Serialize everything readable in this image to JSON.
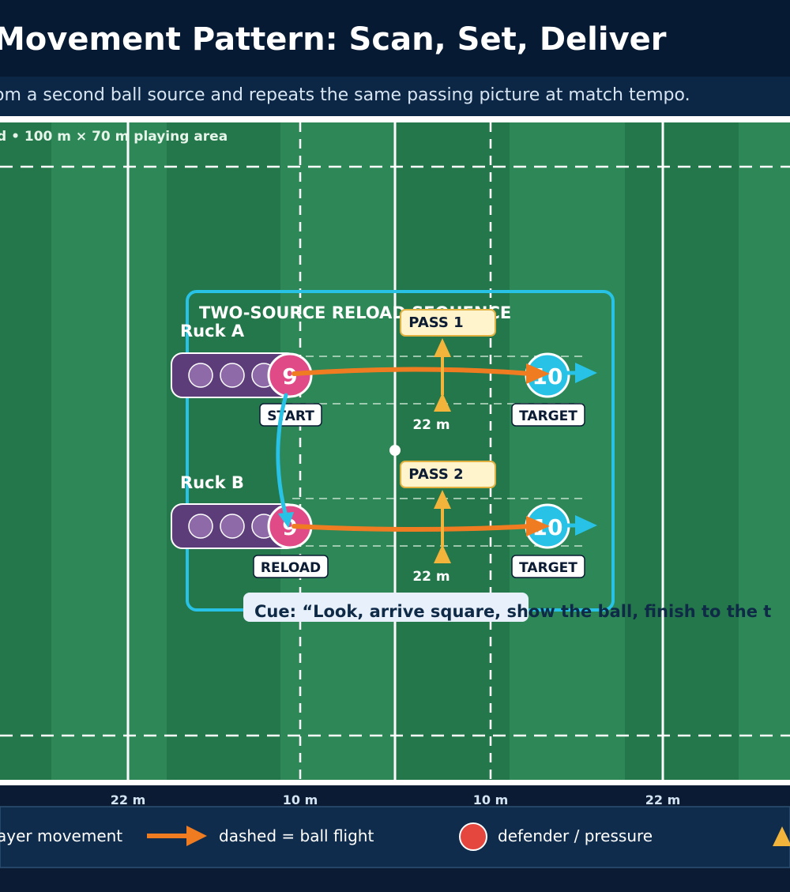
{
  "header": {
    "title": "Movement Pattern: Scan, Set, Deliver",
    "subtitle": "om a second ball source and repeats the same passing picture at match tempo."
  },
  "pitch": {
    "caption": "d • 100 m × 70 m playing area",
    "bottom_labels": [
      "22 m",
      "10 m",
      "10 m",
      "22 m"
    ]
  },
  "drill": {
    "box_title": "TWO-SOURCE RELOAD SEQUENCE",
    "rucks": [
      {
        "name": "Ruck A",
        "player": "9",
        "player_tag": "START",
        "receiver": "10",
        "receiver_tag": "TARGET",
        "pass_label": "PASS 1",
        "distance": "22 m"
      },
      {
        "name": "Ruck B",
        "player": "9",
        "player_tag": "RELOAD",
        "receiver": "10",
        "receiver_tag": "TARGET",
        "pass_label": "PASS 2",
        "distance": "22 m"
      }
    ],
    "cue": "Cue: “Look, arrive square, show the ball, finish to the t"
  },
  "legend": {
    "items": [
      {
        "icon": "player-movement-arrow-icon",
        "label": "ayer movement"
      },
      {
        "icon": "ball-flight-arrow-icon",
        "label": "dashed = ball flight"
      },
      {
        "icon": "defender-circle-icon",
        "label": "defender / pressure"
      },
      {
        "icon": "cone-triangle-icon",
        "label": ""
      }
    ]
  },
  "colors": {
    "navy": "#071a33",
    "pitch_dark": "#24774a",
    "pitch_light": "#2d8757",
    "cyan": "#28c2e6",
    "orange": "#f07c22",
    "yellow": "#f2b43a",
    "pink": "#e04a86",
    "purple": "#5c3d79",
    "red": "#e5473f"
  }
}
